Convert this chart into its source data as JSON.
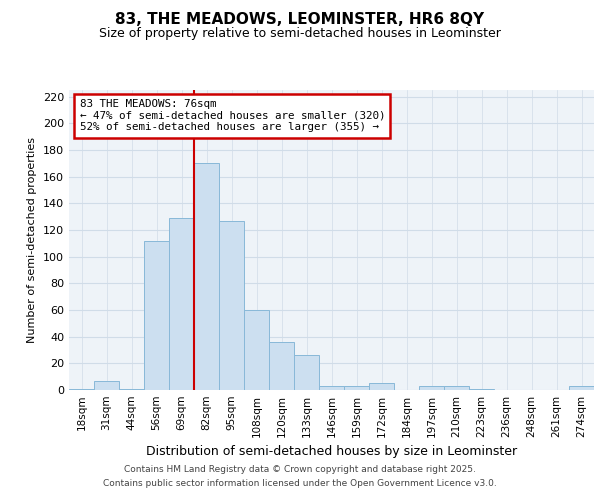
{
  "title": "83, THE MEADOWS, LEOMINSTER, HR6 8QY",
  "subtitle": "Size of property relative to semi-detached houses in Leominster",
  "xlabel": "Distribution of semi-detached houses by size in Leominster",
  "ylabel": "Number of semi-detached properties",
  "categories": [
    "18sqm",
    "31sqm",
    "44sqm",
    "56sqm",
    "69sqm",
    "82sqm",
    "95sqm",
    "108sqm",
    "120sqm",
    "133sqm",
    "146sqm",
    "159sqm",
    "172sqm",
    "184sqm",
    "197sqm",
    "210sqm",
    "223sqm",
    "236sqm",
    "248sqm",
    "261sqm",
    "274sqm"
  ],
  "values": [
    1,
    7,
    1,
    112,
    129,
    170,
    127,
    60,
    36,
    26,
    3,
    3,
    5,
    0,
    3,
    3,
    1,
    0,
    0,
    0,
    3
  ],
  "bar_color": "#ccdff0",
  "bar_edge_color": "#88b8d8",
  "redline_bin_index": 5,
  "annotation_title": "83 THE MEADOWS: 76sqm",
  "annotation_line1": "← 47% of semi-detached houses are smaller (320)",
  "annotation_line2": "52% of semi-detached houses are larger (355) →",
  "annotation_box_color": "#cc0000",
  "ylim": [
    0,
    225
  ],
  "yticks": [
    0,
    20,
    40,
    60,
    80,
    100,
    120,
    140,
    160,
    180,
    200,
    220
  ],
  "footer_line1": "Contains HM Land Registry data © Crown copyright and database right 2025.",
  "footer_line2": "Contains public sector information licensed under the Open Government Licence v3.0.",
  "bg_color": "#eef3f8",
  "grid_color": "#d0dce8",
  "fig_width": 6.0,
  "fig_height": 5.0,
  "dpi": 100
}
